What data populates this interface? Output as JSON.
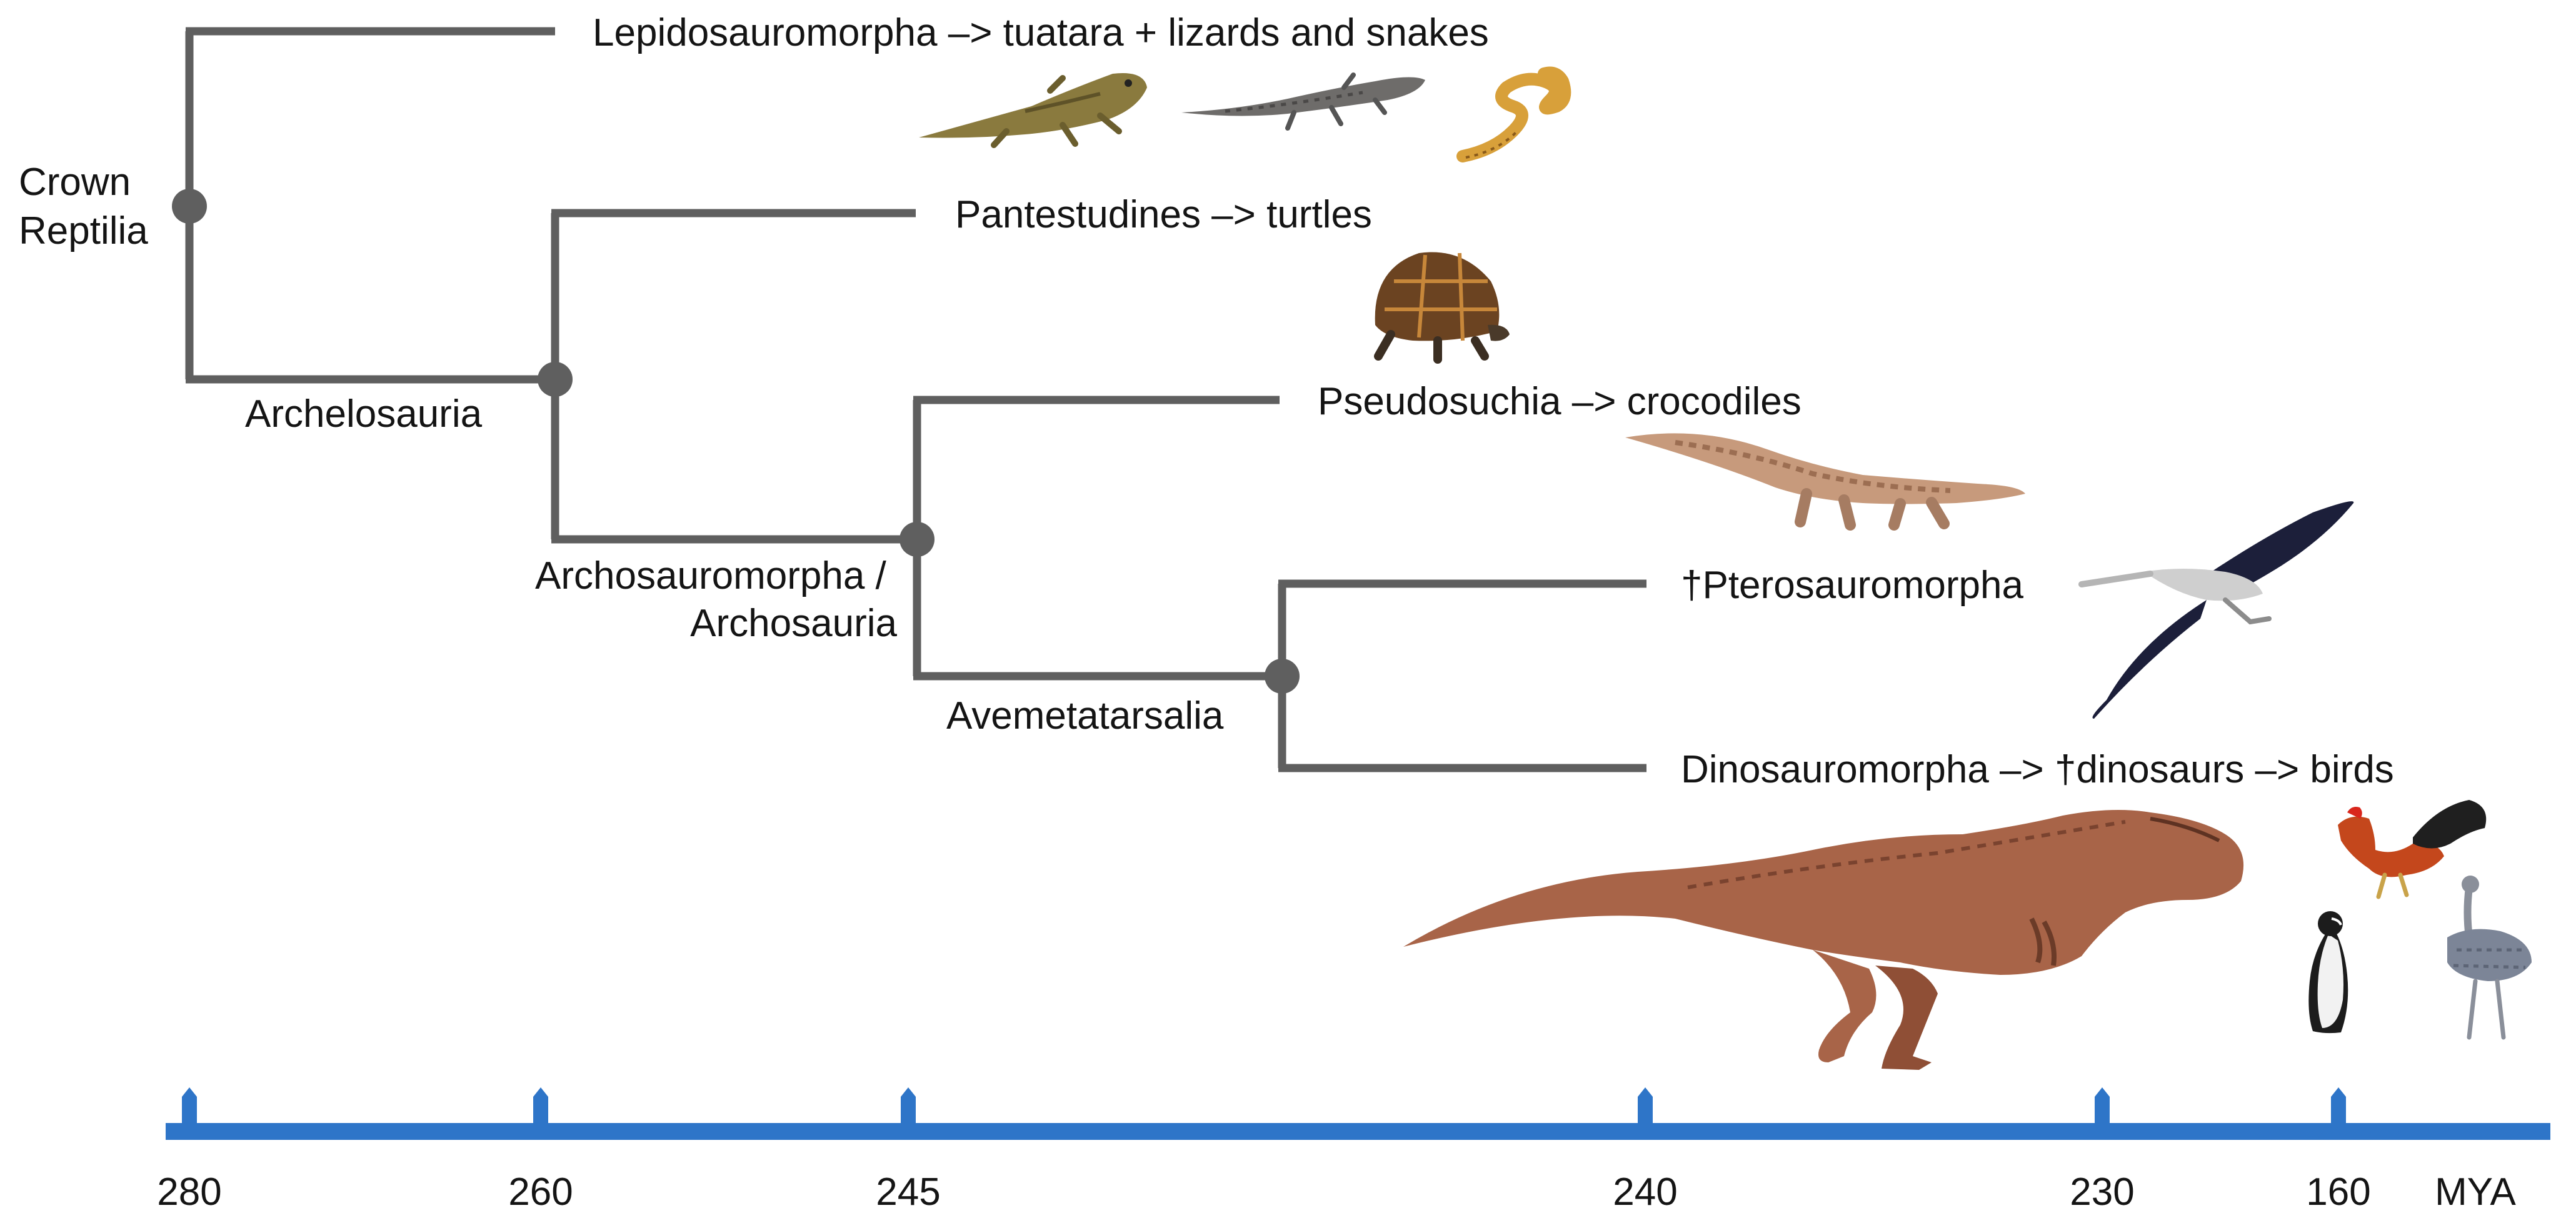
{
  "tree": {
    "root_label": [
      "Crown",
      "Reptilia"
    ],
    "node_labels": {
      "archelosauria": "Archelosauria",
      "archosauromorpha": [
        "Archosauromorpha /",
        "Archosauria"
      ],
      "avemetatarsalia": "Avemetatarsalia"
    },
    "tips": {
      "lepidosauromorpha": "Lepidosauromorpha –> tuatara + lizards and snakes",
      "pantestudines": "Pantestudines –> turtles",
      "pseudosuchia": "Pseudosuchia –> crocodiles",
      "pterosauromorpha": "†Pterosauromorpha",
      "dinosauromorpha": "Dinosauromorpha –> †dinosaurs –> birds"
    }
  },
  "illustrations": {
    "lepidosauromorpha": [
      "tuatara",
      "lizard",
      "snake"
    ],
    "pantestudines": [
      "turtle"
    ],
    "pseudosuchia": [
      "crocodile"
    ],
    "pterosauromorpha": [
      "pterosaur"
    ],
    "dinosauromorpha": [
      "tyrannosaur",
      "rooster",
      "penguin",
      "rhea"
    ]
  },
  "timeline": {
    "ticks": [
      "280",
      "260",
      "245",
      "240",
      "230",
      "160"
    ],
    "unit": "MYA",
    "color": "#2e75c8"
  },
  "colors": {
    "branch": "#5f5f5f",
    "text": "#141414"
  }
}
